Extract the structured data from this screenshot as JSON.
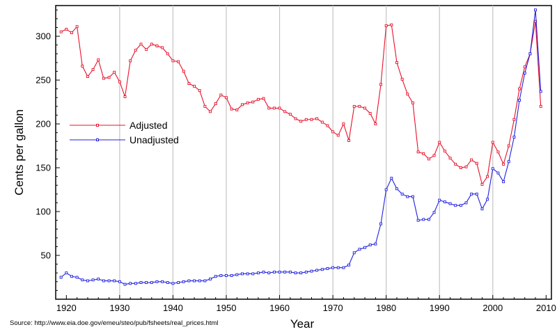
{
  "chart_data": {
    "type": "line",
    "title": "",
    "xlabel": "Year",
    "ylabel": "Cents per gallon",
    "xlim": [
      1918,
      2011
    ],
    "ylim": [
      0,
      335
    ],
    "x_ticks": [
      1920,
      1930,
      1940,
      1950,
      1960,
      1970,
      1980,
      1990,
      2000,
      2010
    ],
    "y_ticks": [
      50,
      100,
      150,
      200,
      250,
      300
    ],
    "x_tick_labels": [
      "1920",
      "1930",
      "1940",
      "1950",
      "1960",
      "1970",
      "1980",
      "1990",
      "2000",
      "2010"
    ],
    "y_tick_labels": [
      "50",
      "100",
      "150",
      "200",
      "250",
      "300"
    ],
    "vertical_gridlines": true,
    "legend_position": "middle-left",
    "x": [
      1919,
      1920,
      1921,
      1922,
      1923,
      1924,
      1925,
      1926,
      1927,
      1928,
      1929,
      1930,
      1931,
      1932,
      1933,
      1934,
      1935,
      1936,
      1937,
      1938,
      1939,
      1940,
      1941,
      1942,
      1943,
      1944,
      1945,
      1946,
      1947,
      1948,
      1949,
      1950,
      1951,
      1952,
      1953,
      1954,
      1955,
      1956,
      1957,
      1958,
      1959,
      1960,
      1961,
      1962,
      1963,
      1964,
      1965,
      1966,
      1967,
      1968,
      1969,
      1970,
      1971,
      1972,
      1973,
      1974,
      1975,
      1976,
      1977,
      1978,
      1979,
      1980,
      1981,
      1982,
      1983,
      1984,
      1985,
      1986,
      1987,
      1988,
      1989,
      1990,
      1991,
      1992,
      1993,
      1994,
      1995,
      1996,
      1997,
      1998,
      1999,
      2000,
      2001,
      2002,
      2003,
      2004,
      2005,
      2006,
      2007,
      2008,
      2009
    ],
    "series": [
      {
        "name": "Adjusted",
        "color": "#e8102a",
        "values": [
          305,
          308,
          304,
          311,
          266,
          254,
          262,
          273,
          252,
          253,
          259,
          248,
          231,
          272,
          284,
          291,
          285,
          291,
          289,
          287,
          280,
          272,
          271,
          260,
          246,
          243,
          238,
          220,
          214,
          223,
          233,
          230,
          217,
          216,
          222,
          224,
          225,
          228,
          229,
          218,
          218,
          218,
          214,
          211,
          206,
          203,
          205,
          205,
          206,
          202,
          198,
          191,
          187,
          200,
          181,
          220,
          220,
          218,
          212,
          200,
          245,
          312,
          313,
          270,
          251,
          234,
          224,
          168,
          166,
          160,
          164,
          179,
          169,
          161,
          154,
          150,
          151,
          159,
          155,
          131,
          140,
          179,
          168,
          154,
          175,
          205,
          240,
          265,
          280,
          317,
          220
        ]
      },
      {
        "name": "Unadjusted",
        "color": "#2020e0",
        "values": [
          25,
          30,
          26,
          25,
          22,
          21,
          22,
          23,
          21,
          21,
          21,
          20,
          17,
          18,
          18,
          19,
          19,
          19,
          20,
          20,
          19,
          18,
          19,
          20,
          21,
          21,
          21,
          21,
          23,
          26,
          27,
          27,
          27,
          28,
          29,
          29,
          29,
          30,
          31,
          30,
          31,
          31,
          31,
          31,
          30,
          30,
          31,
          32,
          33,
          34,
          35,
          36,
          36,
          36,
          39,
          53,
          57,
          59,
          62,
          63,
          86,
          125,
          138,
          126,
          120,
          117,
          117,
          90,
          91,
          91,
          99,
          113,
          111,
          109,
          107,
          107,
          110,
          120,
          120,
          103,
          114,
          149,
          144,
          134,
          157,
          185,
          227,
          258,
          280,
          330,
          237
        ]
      }
    ],
    "source": "Source: http://www.eia.doe.gov/emeu/steo/pub/fsheets/real_prices.html"
  }
}
